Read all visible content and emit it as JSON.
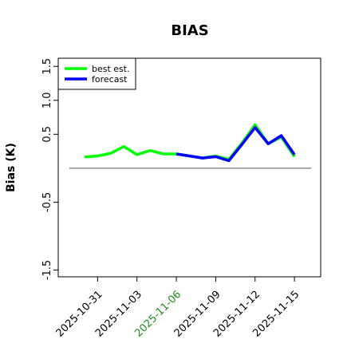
{
  "chart_data": {
    "type": "line",
    "title": "BIAS",
    "y_label": "Bias (K)",
    "x": [
      "2025-10-30",
      "2025-10-31",
      "2025-11-01",
      "2025-11-02",
      "2025-11-03",
      "2025-11-04",
      "2025-11-05",
      "2025-11-06",
      "2025-11-07",
      "2025-11-08",
      "2025-11-09",
      "2025-11-10",
      "2025-11-11",
      "2025-11-12",
      "2025-11-13",
      "2025-11-14",
      "2025-11-15"
    ],
    "series": [
      {
        "name": "best est.",
        "color": "#00ff00",
        "values": [
          0.165,
          0.18,
          0.22,
          0.32,
          0.2,
          0.26,
          0.21,
          0.21,
          0.18,
          0.15,
          0.18,
          0.13,
          0.37,
          0.64,
          0.36,
          0.46,
          0.17
        ]
      },
      {
        "name": "forecast",
        "color": "#0000ff",
        "values": [
          null,
          null,
          null,
          null,
          null,
          null,
          null,
          0.21,
          0.18,
          0.15,
          0.17,
          0.11,
          0.35,
          0.6,
          0.36,
          0.48,
          0.2
        ]
      }
    ],
    "reference_line": 0,
    "xlim": [
      "2025-10-28",
      "2025-11-17"
    ],
    "xticks": [
      "2025-10-31",
      "2025-11-03",
      "2025-11-06",
      "2025-11-09",
      "2025-11-12",
      "2025-11-15"
    ],
    "xtick_colors": [
      "#000000",
      "#000000",
      "#228b22",
      "#000000",
      "#000000",
      "#000000"
    ],
    "ylim": [
      -1.6,
      1.62
    ],
    "yticks": [
      -1.5,
      -0.5,
      0.5,
      {
        "value": 1,
        "label": "1.0"
      },
      1.5
    ],
    "legend": "top-left"
  }
}
